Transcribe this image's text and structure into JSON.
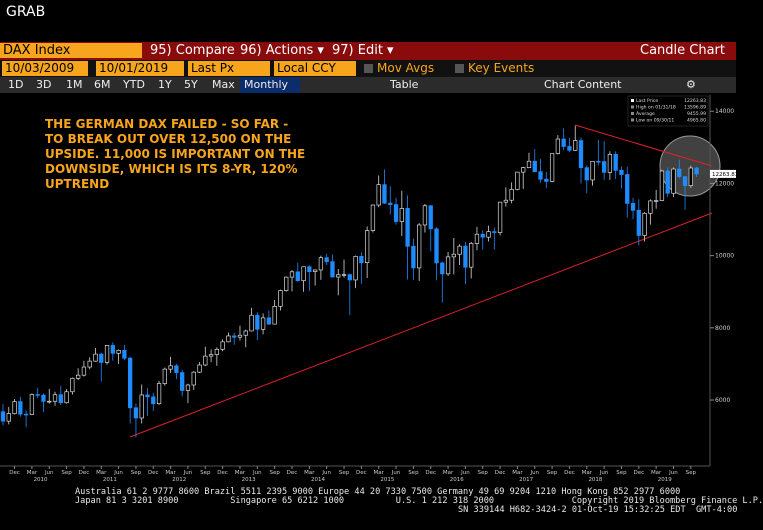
{
  "header": {
    "title": "GRAB"
  },
  "toolbar": {
    "security": "DAX Index",
    "buttons": [
      "95) Compare",
      "96) Actions ▾",
      "97) Edit ▾"
    ],
    "chart_type": "Candle Chart",
    "start_date": "10/03/2009",
    "end_date": "10/01/2019",
    "field": "Last Px",
    "currency": "Local CCY",
    "toggles": [
      "Mov Avgs",
      "Key Events"
    ],
    "periods": [
      "1D",
      "3D",
      "1M",
      "6M",
      "YTD",
      "1Y",
      "5Y",
      "Max"
    ],
    "frequency": "Monthly",
    "table": "Table",
    "content": "Chart Content"
  },
  "chart_data": {
    "type": "candlestick",
    "annotation": [
      "THE GERMAN DAX FAILED - SO FAR -",
      "TO BREAK OUT OVER 12,500 ON THE",
      "UPSIDE. 11,000 IS IMPORTANT ON THE",
      "DOWNSIDE, WHICH IS ITS 8-YR, 120%",
      "UPTREND"
    ],
    "legend": [
      {
        "label": "Last Price",
        "value": "12263.83"
      },
      {
        "label": "High on 01/31/18",
        "value": "13596.89"
      },
      {
        "label": "Average",
        "value": "9455.99"
      },
      {
        "label": "Low on 09/30/11",
        "value": "4965.80"
      }
    ],
    "last_price_tag": "12263.83",
    "up_color": "#d8d8d8",
    "down_color": "#1e8cff",
    "ylim": [
      4200,
      14450
    ],
    "yticks": [
      6000,
      8000,
      10000,
      12000,
      14000
    ],
    "categories": [
      null,
      null,
      "Dec",
      null,
      null,
      "Mar",
      null,
      null,
      "Jun",
      null,
      null,
      "Sep",
      null,
      null,
      "Dec",
      null,
      null,
      "Mar",
      null,
      null,
      "Jun",
      null,
      null,
      "Sep",
      null,
      null,
      "Dec",
      null,
      null,
      "Mar",
      null,
      null,
      "Jun",
      null,
      null,
      "Sep",
      null,
      null,
      "Dec",
      null,
      null,
      "Mar",
      null,
      null,
      "Jun",
      null,
      null,
      "Sep",
      null,
      null,
      "Dec",
      null,
      null,
      "Mar",
      null,
      null,
      "Jun",
      null,
      null,
      "Sep",
      null,
      null,
      "Dec",
      null,
      null,
      "Mar",
      null,
      null,
      "Jun",
      null,
      null,
      "Sep",
      null,
      null,
      "Dec",
      null,
      null,
      "Mar",
      null,
      null,
      "Jun",
      null,
      null,
      "Sep",
      null,
      null,
      "Dec",
      null,
      null,
      "Mar",
      null,
      null,
      "Jun",
      null,
      null,
      "Sep",
      null,
      null,
      "Dec",
      null,
      null,
      "Mar",
      null,
      null,
      "Jun",
      null,
      null,
      "Sep",
      null,
      null,
      "Dec",
      null,
      null,
      "Mar",
      null,
      null,
      "Jun",
      null,
      null,
      "Sep",
      null
    ],
    "year_labels": [
      "2010",
      "2011",
      "2012",
      "2013",
      "2014",
      "2015",
      "2016",
      "2017",
      "2018",
      "2019"
    ],
    "ohlc": [
      [
        5676,
        5889,
        5300,
        5415
      ],
      [
        5415,
        5811,
        5325,
        5625
      ],
      [
        5625,
        6026,
        5600,
        5957
      ],
      [
        5957,
        6094,
        5540,
        5608
      ],
      [
        5608,
        5710,
        5245,
        5598
      ],
      [
        5598,
        6185,
        5580,
        6153
      ],
      [
        6153,
        6340,
        6050,
        6135
      ],
      [
        6135,
        6180,
        5670,
        5964
      ],
      [
        5964,
        6310,
        5900,
        5966
      ],
      [
        5966,
        6230,
        5840,
        6148
      ],
      [
        6148,
        6387,
        5860,
        5925
      ],
      [
        5925,
        6300,
        5900,
        6229
      ],
      [
        6229,
        6625,
        6150,
        6601
      ],
      [
        6601,
        6880,
        6550,
        6688
      ],
      [
        6688,
        7087,
        6650,
        6914
      ],
      [
        6914,
        7180,
        6850,
        7077
      ],
      [
        7077,
        7440,
        7060,
        7272
      ],
      [
        7272,
        7310,
        6510,
        7041
      ],
      [
        7041,
        7527,
        6980,
        7514
      ],
      [
        7514,
        7600,
        7090,
        7294
      ],
      [
        7294,
        7400,
        7000,
        7376
      ],
      [
        7376,
        7523,
        7110,
        7159
      ],
      [
        7159,
        7200,
        5350,
        5785
      ],
      [
        5785,
        5900,
        4966,
        5502
      ],
      [
        5502,
        6430,
        5350,
        6141
      ],
      [
        6141,
        6330,
        5560,
        6088
      ],
      [
        6088,
        6200,
        5700,
        5898
      ],
      [
        5898,
        6530,
        5870,
        6458
      ],
      [
        6458,
        6900,
        6400,
        6856
      ],
      [
        6856,
        7194,
        6750,
        6947
      ],
      [
        6947,
        7000,
        6580,
        6761
      ],
      [
        6761,
        6840,
        6100,
        6264
      ],
      [
        6264,
        6450,
        5915,
        6416
      ],
      [
        6416,
        6800,
        6280,
        6772
      ],
      [
        6772,
        7050,
        6750,
        6970
      ],
      [
        6970,
        7478,
        6940,
        7216
      ],
      [
        7216,
        7400,
        7050,
        7260
      ],
      [
        7260,
        7460,
        6950,
        7405
      ],
      [
        7405,
        7680,
        7350,
        7612
      ],
      [
        7612,
        7870,
        7600,
        7776
      ],
      [
        7776,
        7860,
        7530,
        7741
      ],
      [
        7741,
        8060,
        7650,
        7795
      ],
      [
        7795,
        7950,
        7460,
        7914
      ],
      [
        7914,
        8557,
        7900,
        8349
      ],
      [
        8349,
        8430,
        7655,
        7959
      ],
      [
        7959,
        8400,
        7820,
        8276
      ],
      [
        8276,
        8480,
        8080,
        8103
      ],
      [
        8103,
        8770,
        8100,
        8594
      ],
      [
        8594,
        9060,
        8480,
        9033
      ],
      [
        9033,
        9420,
        9000,
        9405
      ],
      [
        9405,
        9600,
        9010,
        9552
      ],
      [
        9552,
        9800,
        9280,
        9306
      ],
      [
        9306,
        9700,
        9000,
        9692
      ],
      [
        9692,
        9730,
        9020,
        9556
      ],
      [
        9556,
        9620,
        9170,
        9603
      ],
      [
        9603,
        10000,
        9330,
        9943
      ],
      [
        9943,
        10050,
        9740,
        9833
      ],
      [
        9833,
        10030,
        9400,
        9407
      ],
      [
        9407,
        9630,
        8900,
        9470
      ],
      [
        9470,
        9890,
        9390,
        9474
      ],
      [
        9474,
        9500,
        8355,
        9327
      ],
      [
        9327,
        10000,
        9100,
        9980
      ],
      [
        9980,
        10093,
        9220,
        9806
      ],
      [
        9806,
        10810,
        9380,
        10694
      ],
      [
        10694,
        11420,
        10640,
        11402
      ],
      [
        11402,
        12220,
        11340,
        11966
      ],
      [
        11966,
        12391,
        11430,
        11454
      ],
      [
        11454,
        11920,
        11140,
        11414
      ],
      [
        11414,
        11600,
        10860,
        10945
      ],
      [
        10945,
        11800,
        10540,
        11309
      ],
      [
        11309,
        11670,
        9340,
        10259
      ],
      [
        10259,
        10470,
        9330,
        9660
      ],
      [
        9660,
        10900,
        9300,
        10850
      ],
      [
        10850,
        11430,
        10640,
        11382
      ],
      [
        11382,
        11400,
        10120,
        10743
      ],
      [
        10743,
        10790,
        9315,
        9798
      ],
      [
        9798,
        9840,
        8700,
        9495
      ],
      [
        9495,
        10100,
        9440,
        9966
      ],
      [
        9966,
        10490,
        9480,
        10039
      ],
      [
        10039,
        10320,
        9740,
        10263
      ],
      [
        10263,
        10380,
        9210,
        9680
      ],
      [
        9680,
        10380,
        9370,
        10337
      ],
      [
        10337,
        10800,
        10150,
        10593
      ],
      [
        10593,
        10700,
        10170,
        10511
      ],
      [
        10511,
        10830,
        10390,
        10665
      ],
      [
        10665,
        10780,
        10170,
        10640
      ],
      [
        10640,
        11490,
        10560,
        11481
      ],
      [
        11481,
        11890,
        11360,
        11535
      ],
      [
        11535,
        12030,
        11450,
        11834
      ],
      [
        11834,
        12320,
        11810,
        12313
      ],
      [
        12313,
        12460,
        11850,
        12438
      ],
      [
        12438,
        12850,
        12420,
        12615
      ],
      [
        12615,
        12950,
        12310,
        12325
      ],
      [
        12325,
        12680,
        12020,
        12118
      ],
      [
        12118,
        12320,
        11870,
        12056
      ],
      [
        12056,
        12830,
        12030,
        12829
      ],
      [
        12829,
        13340,
        12800,
        13230
      ],
      [
        13230,
        13530,
        12920,
        13024
      ],
      [
        13024,
        13260,
        12860,
        12918
      ],
      [
        12918,
        13597,
        12900,
        13189
      ],
      [
        13189,
        13270,
        12000,
        12436
      ],
      [
        12436,
        12500,
        11730,
        12097
      ],
      [
        12097,
        12620,
        11940,
        12612
      ],
      [
        12612,
        13210,
        12500,
        12605
      ],
      [
        12605,
        13170,
        12100,
        12306
      ],
      [
        12306,
        12890,
        12100,
        12806
      ],
      [
        12806,
        12890,
        12120,
        12364
      ],
      [
        12364,
        12470,
        11860,
        12247
      ],
      [
        12247,
        12460,
        11050,
        11447
      ],
      [
        11447,
        11600,
        11010,
        11257
      ],
      [
        11257,
        11560,
        10280,
        10559
      ],
      [
        10559,
        11210,
        10390,
        11173
      ],
      [
        11173,
        11560,
        10860,
        11516
      ],
      [
        11516,
        11820,
        11300,
        11526
      ],
      [
        11526,
        12380,
        11510,
        12344
      ],
      [
        12344,
        12440,
        11620,
        11727
      ],
      [
        11727,
        12440,
        11620,
        12399
      ],
      [
        12399,
        12660,
        12140,
        12189
      ],
      [
        12189,
        12190,
        11270,
        11939
      ],
      [
        11939,
        12490,
        11880,
        12428
      ],
      [
        12428,
        12460,
        12180,
        12264
      ]
    ]
  },
  "footer": {
    "lines": [
      "Australia 61 2 9777 8600 Brazil 5511 2395 9000 Europe 44 20 7330 7500 Germany 49 69 9204 1210 Hong Kong 852 2977 6000",
      "Japan 81 3 3201 8900          Singapore 65 6212 1000          U.S. 1 212 318 2000               Copyright 2019 Bloomberg Finance L.P.",
      "SN 339144 H682-3424-2 01-Oct-19 15:32:25 EDT  GMT-4:00"
    ]
  }
}
